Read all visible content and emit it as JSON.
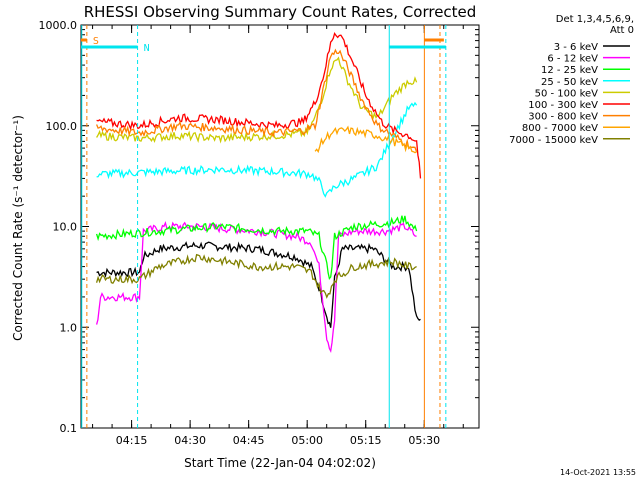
{
  "chart_data": {
    "type": "line",
    "title": "RHESSI Observing Summary Count Rates, Corrected",
    "ylabel": "Corrected Count Rate (s⁻¹ detector⁻¹)",
    "xlabel": "Start Time (22-Jan-04 04:02:02)",
    "y_scale": "log",
    "ylim": [
      0.1,
      1000
    ],
    "y_ticks": [
      "0.1",
      "1.0",
      "10.0",
      "100.0",
      "1000.0"
    ],
    "x_ticks": [
      "04:15",
      "04:30",
      "04:45",
      "05:00",
      "05:15",
      "05:30"
    ],
    "xlim_minutes": [
      0,
      102
    ],
    "legend_header": [
      "Det 1,3,4,5,6,9,",
      "Att 0"
    ],
    "legend_position": "right",
    "timestamp": "14-Oct-2021 13:55",
    "markers": {
      "S": {
        "label": "S",
        "color": "#ff7f00"
      },
      "N": {
        "label": "N",
        "color": "#00e5ee"
      }
    },
    "series": [
      {
        "name": "3 - 6 keV",
        "color": "#000000",
        "points": [
          [
            4,
            3.5
          ],
          [
            15,
            3.5
          ],
          [
            16,
            5
          ],
          [
            20,
            6
          ],
          [
            30,
            6.5
          ],
          [
            45,
            6
          ],
          [
            55,
            5
          ],
          [
            59,
            4
          ],
          [
            61,
            2.5
          ],
          [
            63,
            1.3
          ],
          [
            64,
            1.0
          ],
          [
            65,
            3
          ],
          [
            67,
            6
          ],
          [
            70,
            6
          ],
          [
            75,
            6
          ],
          [
            80,
            4
          ],
          [
            84,
            4
          ],
          [
            86,
            1.2
          ],
          [
            87,
            1.2
          ]
        ]
      },
      {
        "name": "6 - 12 keV",
        "color": "#ff00ff",
        "points": [
          [
            4,
            1.0
          ],
          [
            5,
            2.0
          ],
          [
            15,
            2.0
          ],
          [
            16,
            9
          ],
          [
            22,
            10
          ],
          [
            30,
            10
          ],
          [
            45,
            9
          ],
          [
            55,
            8
          ],
          [
            59,
            7
          ],
          [
            61,
            4
          ],
          [
            63,
            0.8
          ],
          [
            64,
            0.6
          ],
          [
            65,
            1.2
          ],
          [
            66,
            8
          ],
          [
            70,
            9
          ],
          [
            78,
            9
          ],
          [
            83,
            10
          ],
          [
            86,
            8
          ]
        ]
      },
      {
        "name": "12 - 25 keV",
        "color": "#00ff00",
        "points": [
          [
            4,
            8
          ],
          [
            20,
            9
          ],
          [
            35,
            10
          ],
          [
            50,
            9
          ],
          [
            58,
            9
          ],
          [
            61,
            8
          ],
          [
            63,
            4
          ],
          [
            64,
            3
          ],
          [
            65,
            8
          ],
          [
            70,
            10
          ],
          [
            80,
            11
          ],
          [
            83,
            12
          ],
          [
            86,
            9
          ]
        ]
      },
      {
        "name": "25 - 50 keV",
        "color": "#00ffff",
        "points": [
          [
            4,
            33
          ],
          [
            20,
            35
          ],
          [
            35,
            37
          ],
          [
            50,
            35
          ],
          [
            59,
            33
          ],
          [
            61,
            28
          ],
          [
            63,
            20
          ],
          [
            65,
            25
          ],
          [
            70,
            30
          ],
          [
            76,
            40
          ],
          [
            80,
            80
          ],
          [
            84,
            150
          ],
          [
            86,
            160
          ]
        ]
      },
      {
        "name": "50 - 100 keV",
        "color": "#cccc00",
        "points": [
          [
            4,
            80
          ],
          [
            15,
            75
          ],
          [
            25,
            80
          ],
          [
            35,
            75
          ],
          [
            50,
            80
          ],
          [
            58,
            85
          ],
          [
            60,
            120
          ],
          [
            62,
            200
          ],
          [
            64,
            380
          ],
          [
            66,
            470
          ],
          [
            68,
            300
          ],
          [
            72,
            150
          ],
          [
            76,
            120
          ],
          [
            80,
            200
          ],
          [
            84,
            280
          ],
          [
            86,
            270
          ]
        ]
      },
      {
        "name": "100 - 300 keV",
        "color": "#ff0000",
        "points": [
          [
            4,
            110
          ],
          [
            15,
            100
          ],
          [
            25,
            120
          ],
          [
            35,
            115
          ],
          [
            50,
            100
          ],
          [
            57,
            110
          ],
          [
            60,
            170
          ],
          [
            62,
            300
          ],
          [
            64,
            650
          ],
          [
            65,
            850
          ],
          [
            67,
            750
          ],
          [
            70,
            400
          ],
          [
            73,
            200
          ],
          [
            77,
            110
          ],
          [
            80,
            90
          ],
          [
            84,
            80
          ],
          [
            86,
            70
          ],
          [
            87,
            30
          ]
        ]
      },
      {
        "name": "300 - 800 keV",
        "color": "#ff7f00",
        "points": [
          [
            4,
            95
          ],
          [
            15,
            85
          ],
          [
            25,
            100
          ],
          [
            35,
            95
          ],
          [
            50,
            85
          ],
          [
            57,
            90
          ],
          [
            60,
            100
          ],
          [
            62,
            220
          ],
          [
            64,
            500
          ],
          [
            66,
            560
          ],
          [
            68,
            400
          ],
          [
            72,
            180
          ],
          [
            76,
            100
          ],
          [
            80,
            80
          ],
          [
            84,
            65
          ],
          [
            86,
            55
          ]
        ]
      },
      {
        "name": "800 - 7000 keV",
        "color": "#ffa500",
        "points": [
          [
            60,
            55
          ],
          [
            62,
            70
          ],
          [
            64,
            85
          ],
          [
            68,
            90
          ],
          [
            72,
            85
          ],
          [
            76,
            80
          ],
          [
            80,
            70
          ],
          [
            84,
            60
          ],
          [
            86,
            55
          ]
        ]
      },
      {
        "name": "7000 - 15000 keV",
        "color": "#808000",
        "points": [
          [
            4,
            3
          ],
          [
            15,
            3
          ],
          [
            20,
            4
          ],
          [
            30,
            5
          ],
          [
            45,
            4
          ],
          [
            55,
            4
          ],
          [
            59,
            3.5
          ],
          [
            61,
            2.5
          ],
          [
            63,
            2
          ],
          [
            65,
            3
          ],
          [
            70,
            4
          ],
          [
            80,
            4.5
          ],
          [
            84,
            4
          ],
          [
            86,
            4
          ]
        ]
      }
    ]
  }
}
